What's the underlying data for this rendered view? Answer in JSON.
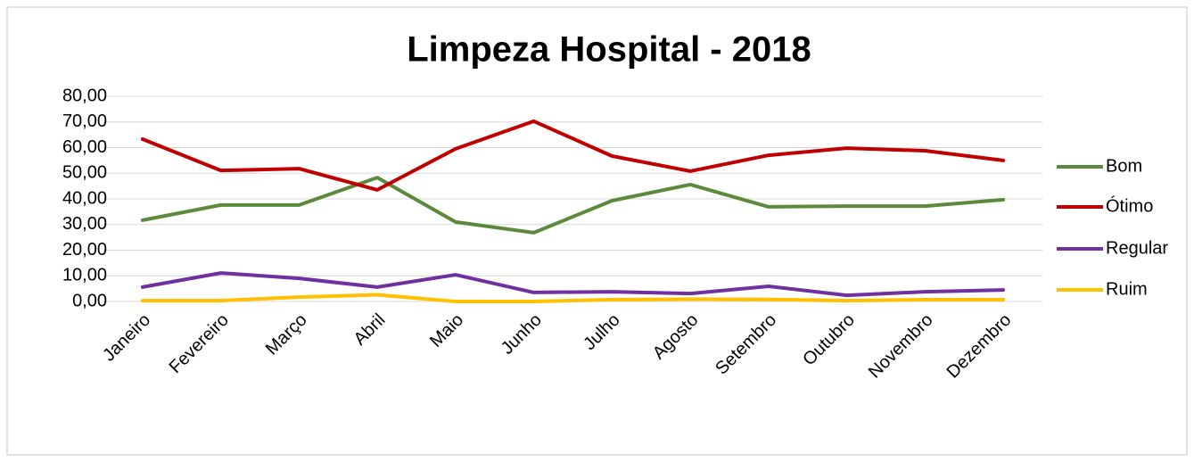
{
  "chart_data": {
    "type": "line",
    "title": "Limpeza Hospital - 2018",
    "categories": [
      "Janeiro",
      "Fevereiro",
      "Março",
      "Abril",
      "Maio",
      "Junho",
      "Julho",
      "Agosto",
      "Setembro",
      "Outubro",
      "Novembro",
      "Dezembro"
    ],
    "series": [
      {
        "name": "Bom",
        "color": "#5b8a3c",
        "values": [
          31.7,
          37.6,
          37.6,
          48.3,
          31.0,
          26.8,
          39.3,
          45.6,
          36.9,
          37.2,
          37.2,
          39.7
        ]
      },
      {
        "name": "Ótimo",
        "color": "#c00000",
        "values": [
          63.3,
          51.1,
          51.8,
          43.5,
          59.5,
          70.3,
          56.7,
          50.8,
          57.0,
          59.8,
          58.8,
          55.0
        ]
      },
      {
        "name": "Regular",
        "color": "#7030a0",
        "values": [
          5.6,
          11.1,
          9.0,
          5.6,
          10.4,
          3.5,
          3.8,
          3.1,
          5.9,
          2.4,
          3.8,
          4.5
        ]
      },
      {
        "name": "Ruim",
        "color": "#ffc000",
        "values": [
          0.3,
          0.3,
          1.7,
          2.6,
          0,
          0,
          0.7,
          0.9,
          0.8,
          0.3,
          0.7,
          0.7
        ]
      }
    ],
    "ylim": [
      0,
      80
    ],
    "yticks": [
      {
        "value": 0,
        "label": "0,00"
      },
      {
        "value": 10,
        "label": "10,00"
      },
      {
        "value": 20,
        "label": "20,00"
      },
      {
        "value": 30,
        "label": "30,00"
      },
      {
        "value": 40,
        "label": "40,00"
      },
      {
        "value": 50,
        "label": "50,00"
      },
      {
        "value": 60,
        "label": "60,00"
      },
      {
        "value": 70,
        "label": "70,00"
      },
      {
        "value": 80,
        "label": "80,00"
      }
    ],
    "grid": true,
    "legend": "right"
  }
}
